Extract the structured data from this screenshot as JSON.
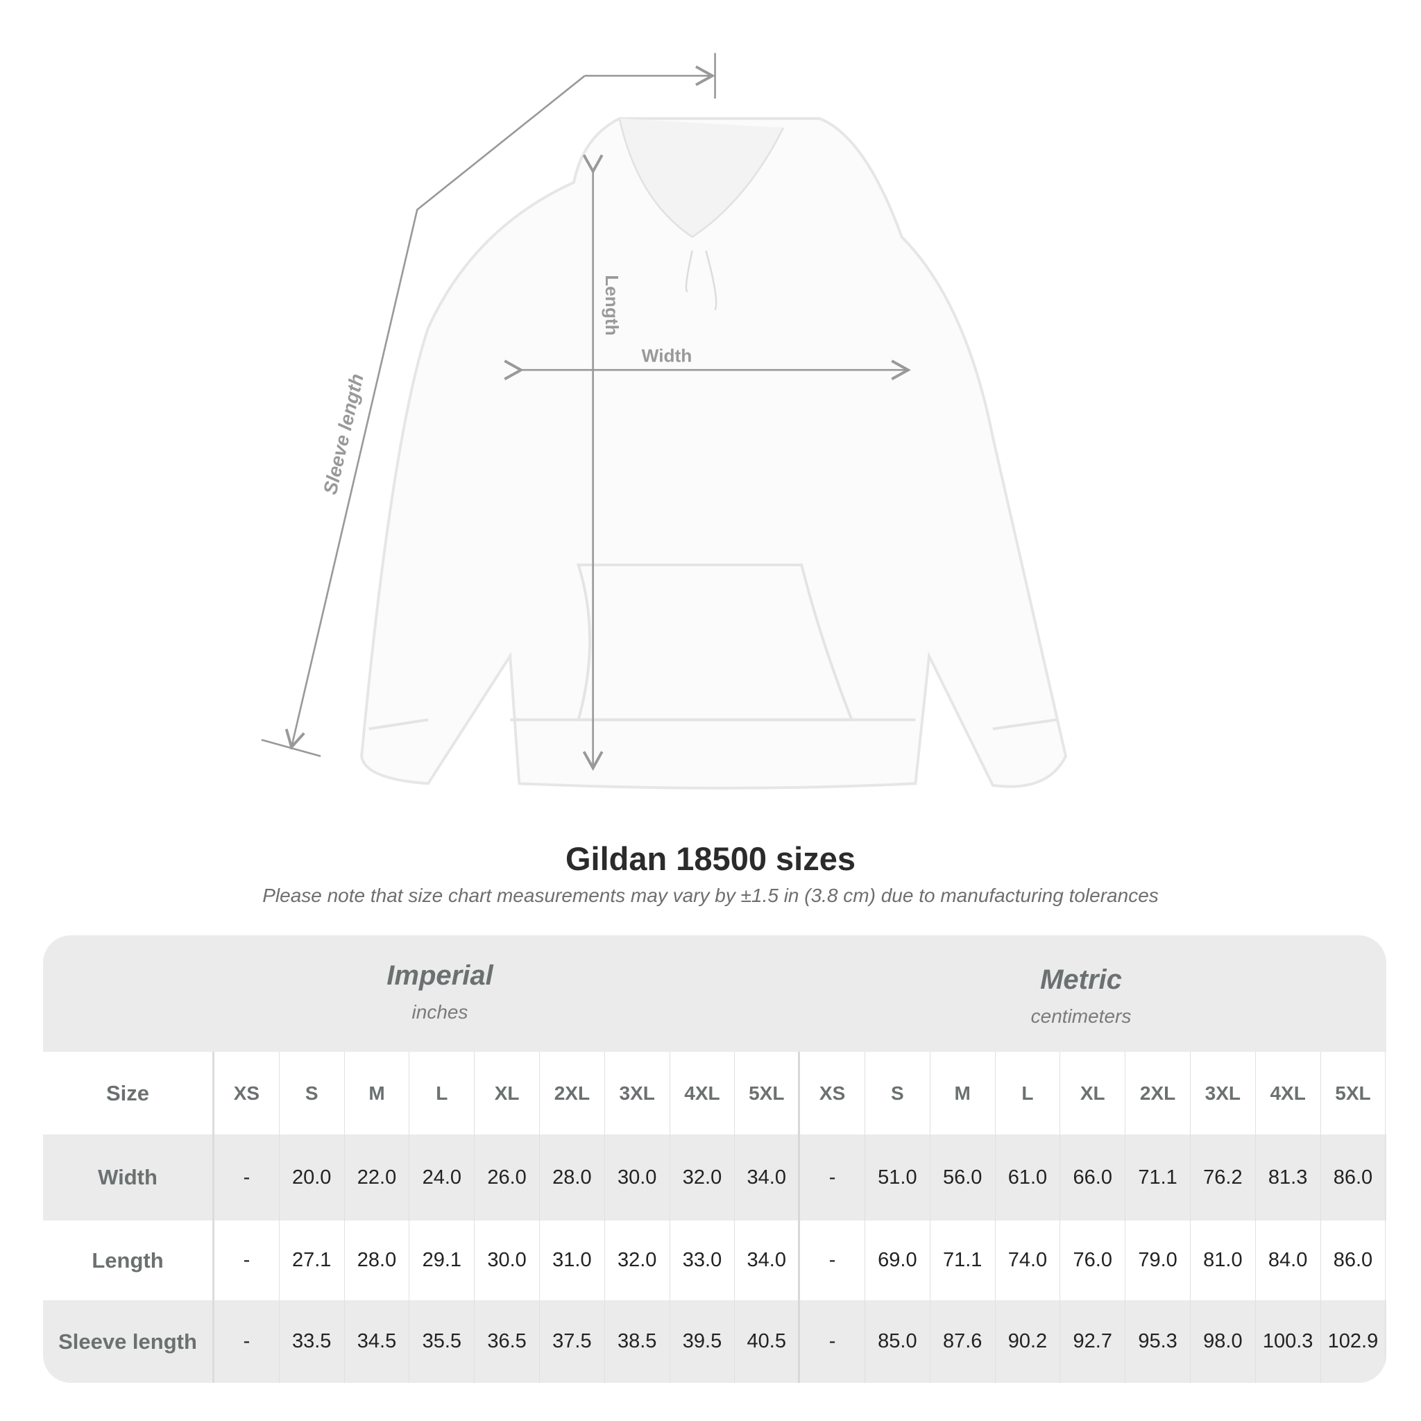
{
  "diagram": {
    "length_label": "Length",
    "width_label": "Width",
    "sleeve_label": "Sleeve length"
  },
  "title": "Gildan 18500 sizes",
  "note": "Please note that size chart measurements may vary by ±1.5 in (3.8 cm) due to manufacturing tolerances",
  "imperial": {
    "name": "Imperial",
    "unit": "inches"
  },
  "metric": {
    "name": "Metric",
    "unit": "centimeters"
  },
  "size_label": "Size",
  "sizes": [
    "XS",
    "S",
    "M",
    "L",
    "XL",
    "2XL",
    "3XL",
    "4XL",
    "5XL",
    "XS",
    "S",
    "M",
    "L",
    "XL",
    "2XL",
    "3XL",
    "4XL",
    "5XL"
  ],
  "rows": [
    {
      "label": "Width",
      "values": [
        "-",
        "20.0",
        "22.0",
        "24.0",
        "26.0",
        "28.0",
        "30.0",
        "32.0",
        "34.0",
        "-",
        "51.0",
        "56.0",
        "61.0",
        "66.0",
        "71.1",
        "76.2",
        "81.3",
        "86.0"
      ]
    },
    {
      "label": "Length",
      "values": [
        "-",
        "27.1",
        "28.0",
        "29.1",
        "30.0",
        "31.0",
        "32.0",
        "33.0",
        "34.0",
        "-",
        "69.0",
        "71.1",
        "74.0",
        "76.0",
        "79.0",
        "81.0",
        "84.0",
        "86.0"
      ]
    },
    {
      "label": "Sleeve length",
      "values": [
        "-",
        "33.5",
        "34.5",
        "35.5",
        "36.5",
        "37.5",
        "38.5",
        "39.5",
        "40.5",
        "-",
        "85.0",
        "87.6",
        "90.2",
        "92.7",
        "95.3",
        "98.0",
        "100.3",
        "102.9"
      ]
    }
  ]
}
